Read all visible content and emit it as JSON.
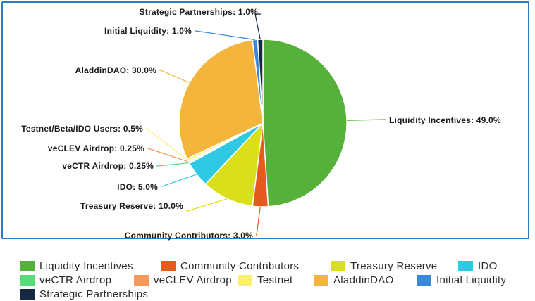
{
  "chart_data": {
    "type": "pie",
    "title": "",
    "slices": [
      {
        "name": "Liquidity Incentives",
        "label": "Liquidity Incentives: 49.0%",
        "value": 49.0,
        "color": "#56b13a"
      },
      {
        "name": "Community Contributors",
        "label": "Community Contributors: 3.0%",
        "value": 3.0,
        "color": "#e55b1d"
      },
      {
        "name": "Treasury Reserve",
        "label": "Treasury Reserve: 10.0%",
        "value": 10.0,
        "color": "#d9e01b"
      },
      {
        "name": "IDO",
        "label": "IDO: 5.0%",
        "value": 5.0,
        "color": "#2fc9e3"
      },
      {
        "name": "veCTR Airdrop",
        "label": "veCTR Airdrop: 0.25%",
        "value": 0.25,
        "color": "#58dc7a"
      },
      {
        "name": "veCLEV Airdrop",
        "label": "veCLEV Airdrop: 0.25%",
        "value": 0.25,
        "color": "#f59a5a"
      },
      {
        "name": "Testnet",
        "label": "Testnet/Beta/IDO Users: 0.5%",
        "value": 0.5,
        "color": "#fdf071"
      },
      {
        "name": "AladdinDAO",
        "label": "AladdinDAO: 30.0%",
        "value": 30.0,
        "color": "#f3b53b"
      },
      {
        "name": "Initial Liquidity",
        "label": "Initial Liquidity: 1.0%",
        "value": 1.0,
        "color": "#3a88dc"
      },
      {
        "name": "Strategic Partnerships",
        "label": "Strategic Partnerships: 1.0%",
        "value": 1.0,
        "color": "#162842"
      }
    ],
    "legend_position": "bottom"
  }
}
